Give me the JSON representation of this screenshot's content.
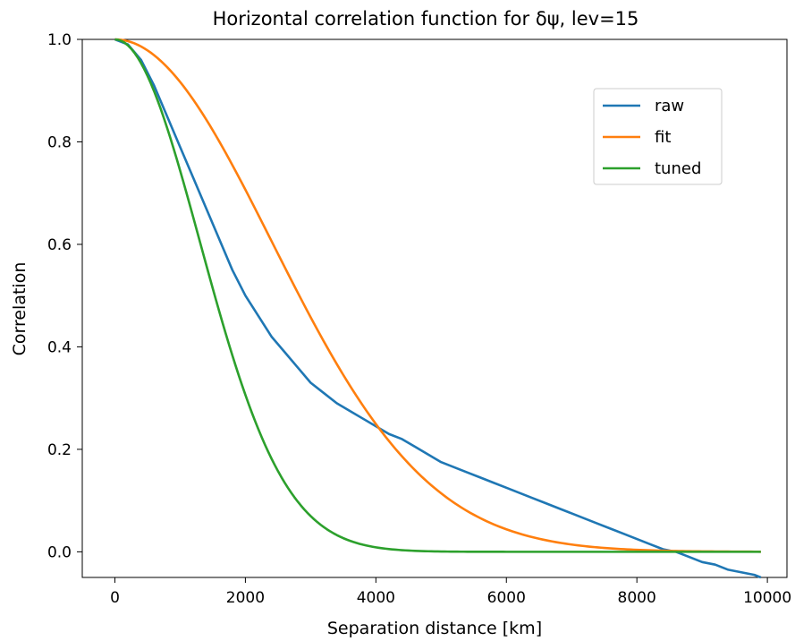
{
  "chart_data": {
    "type": "line",
    "title": "Horizontal correlation function for δψ, lev=15",
    "xlabel": "Separation distance [km]",
    "ylabel": "Correlation",
    "xlim": [
      -500,
      10300
    ],
    "ylim": [
      -0.05,
      1.0
    ],
    "xticks": [
      0,
      2000,
      4000,
      6000,
      8000,
      10000
    ],
    "xtick_labels": [
      "0",
      "2000",
      "4000",
      "6000",
      "8000",
      "10000"
    ],
    "yticks": [
      0.0,
      0.2,
      0.4,
      0.6,
      0.8,
      1.0
    ],
    "ytick_labels": [
      "0.0",
      "0.2",
      "0.4",
      "0.6",
      "0.8",
      "1.0"
    ],
    "grid": false,
    "legend_position": "upper-right",
    "series": [
      {
        "name": "raw",
        "color": "#1f77b4",
        "x": [
          0,
          200,
          400,
          600,
          800,
          1000,
          1200,
          1400,
          1600,
          1800,
          2000,
          2200,
          2400,
          2600,
          2800,
          3000,
          3200,
          3400,
          3600,
          3800,
          4000,
          4200,
          4400,
          4600,
          4800,
          5000,
          5200,
          5400,
          5600,
          5800,
          6000,
          6200,
          6400,
          6600,
          6800,
          7000,
          7200,
          7400,
          7600,
          7800,
          8000,
          8200,
          8400,
          8600,
          8800,
          9000,
          9200,
          9400,
          9600,
          9800,
          9900
        ],
        "y": [
          1.0,
          0.99,
          0.96,
          0.91,
          0.85,
          0.79,
          0.73,
          0.67,
          0.61,
          0.55,
          0.5,
          0.46,
          0.42,
          0.39,
          0.36,
          0.33,
          0.31,
          0.29,
          0.275,
          0.26,
          0.245,
          0.23,
          0.22,
          0.205,
          0.19,
          0.175,
          0.165,
          0.155,
          0.145,
          0.135,
          0.125,
          0.115,
          0.105,
          0.095,
          0.085,
          0.075,
          0.065,
          0.055,
          0.045,
          0.035,
          0.025,
          0.015,
          0.005,
          0.0,
          -0.01,
          -0.02,
          -0.025,
          -0.035,
          -0.04,
          -0.045,
          -0.05
        ]
      },
      {
        "name": "fit",
        "color": "#ff7f0e",
        "gaussian_length_scale_km": 2400
      },
      {
        "name": "tuned",
        "color": "#2ca02c",
        "gaussian_length_scale_km": 1300
      }
    ]
  }
}
